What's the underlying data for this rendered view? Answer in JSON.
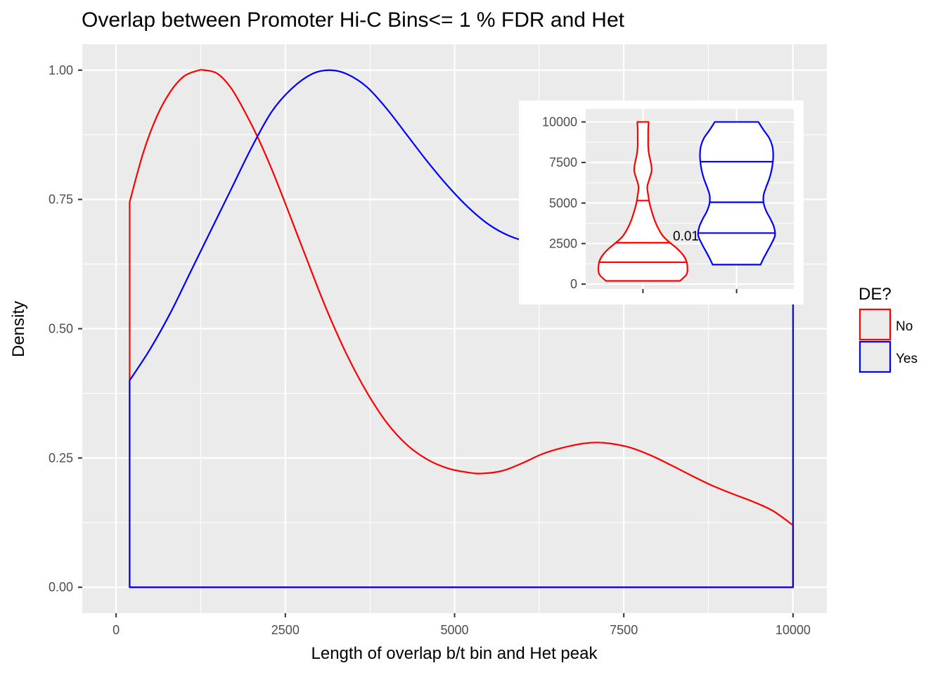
{
  "chart_data": {
    "type": "area",
    "title": "Overlap between Promoter Hi-C Bins<= 1 % FDR and Het",
    "xlabel": "Length of overlap b/t bin and Het peak",
    "ylabel": "Density",
    "xlim": [
      -500,
      10500
    ],
    "ylim": [
      -0.05,
      1.05
    ],
    "x_ticks": [
      0,
      2500,
      5000,
      7500,
      10000
    ],
    "x_tick_labels": [
      "0",
      "2500",
      "5000",
      "7500",
      "10000"
    ],
    "y_ticks": [
      0.0,
      0.25,
      0.5,
      0.75,
      1.0
    ],
    "y_tick_labels": [
      "0.00",
      "0.25",
      "0.50",
      "0.75",
      "1.00"
    ],
    "grid": true,
    "legend": {
      "title": "DE?",
      "position": "right",
      "entries": [
        {
          "label": "No",
          "color": "#ff0000"
        },
        {
          "label": "Yes",
          "color": "#0000ff"
        }
      ]
    },
    "series": [
      {
        "name": "No",
        "color": "#ff0000",
        "x": [
          200,
          400,
          600,
          800,
          1000,
          1200,
          1300,
          1500,
          1700,
          1900,
          2100,
          2300,
          2500,
          2800,
          3100,
          3400,
          3700,
          4000,
          4300,
          4600,
          4900,
          5200,
          5400,
          5700,
          6000,
          6300,
          6600,
          6900,
          7100,
          7300,
          7600,
          7900,
          8200,
          8500,
          8800,
          9100,
          9400,
          9700,
          10000
        ],
        "y": [
          0.745,
          0.84,
          0.91,
          0.958,
          0.988,
          0.999,
          1.0,
          0.993,
          0.965,
          0.92,
          0.868,
          0.808,
          0.742,
          0.64,
          0.54,
          0.452,
          0.378,
          0.318,
          0.275,
          0.247,
          0.23,
          0.222,
          0.22,
          0.225,
          0.24,
          0.258,
          0.27,
          0.278,
          0.28,
          0.278,
          0.27,
          0.255,
          0.236,
          0.216,
          0.197,
          0.181,
          0.166,
          0.148,
          0.12
        ]
      },
      {
        "name": "Yes",
        "color": "#0000ff",
        "x": [
          200,
          500,
          800,
          1100,
          1400,
          1700,
          2000,
          2300,
          2600,
          2900,
          3150,
          3400,
          3700,
          4000,
          4300,
          4600,
          4900,
          5200,
          5500,
          5800,
          6100,
          6400,
          6700,
          7000,
          7300,
          7600,
          7900,
          8200,
          8500,
          8800,
          9100,
          9400,
          9700,
          10000
        ],
        "y": [
          0.4,
          0.46,
          0.53,
          0.61,
          0.69,
          0.77,
          0.85,
          0.92,
          0.965,
          0.993,
          1.0,
          0.993,
          0.968,
          0.925,
          0.874,
          0.823,
          0.776,
          0.735,
          0.702,
          0.68,
          0.668,
          0.665,
          0.67,
          0.68,
          0.693,
          0.705,
          0.715,
          0.72,
          0.72,
          0.714,
          0.7,
          0.68,
          0.655,
          0.62
        ]
      }
    ],
    "inset": {
      "type": "violin",
      "ylim": [
        -300,
        10800
      ],
      "y_ticks": [
        0,
        2500,
        5000,
        7500,
        10000
      ],
      "y_tick_labels": [
        "0",
        "2500",
        "5000",
        "7500",
        "10000"
      ],
      "annotation": "0.01",
      "groups": [
        {
          "name": "No",
          "color": "#ff0000",
          "quantiles": [
            1350,
            2550,
            5150
          ],
          "profile": [
            [
              200,
              0.85
            ],
            [
              600,
              1.0
            ],
            [
              1000,
              1.02
            ],
            [
              1400,
              1.0
            ],
            [
              1800,
              0.92
            ],
            [
              2200,
              0.78
            ],
            [
              2600,
              0.6
            ],
            [
              3000,
              0.45
            ],
            [
              3500,
              0.34
            ],
            [
              4000,
              0.26
            ],
            [
              4500,
              0.2
            ],
            [
              5000,
              0.15
            ],
            [
              5500,
              0.12
            ],
            [
              6000,
              0.1
            ],
            [
              6500,
              0.15
            ],
            [
              7000,
              0.2
            ],
            [
              7500,
              0.18
            ],
            [
              8000,
              0.14
            ],
            [
              8500,
              0.12
            ],
            [
              9000,
              0.12
            ],
            [
              9500,
              0.12
            ],
            [
              10000,
              0.13
            ]
          ]
        },
        {
          "name": "Yes",
          "color": "#0000ff",
          "quantiles": [
            3150,
            5050,
            7550
          ],
          "profile": [
            [
              1200,
              0.55
            ],
            [
              1600,
              0.62
            ],
            [
              2000,
              0.7
            ],
            [
              2500,
              0.8
            ],
            [
              3000,
              0.88
            ],
            [
              3500,
              0.86
            ],
            [
              4000,
              0.78
            ],
            [
              4500,
              0.68
            ],
            [
              5000,
              0.62
            ],
            [
              5500,
              0.62
            ],
            [
              6000,
              0.68
            ],
            [
              6500,
              0.75
            ],
            [
              7000,
              0.8
            ],
            [
              7500,
              0.83
            ],
            [
              8000,
              0.84
            ],
            [
              8500,
              0.82
            ],
            [
              9000,
              0.75
            ],
            [
              9500,
              0.62
            ],
            [
              10000,
              0.5
            ]
          ]
        }
      ]
    }
  }
}
